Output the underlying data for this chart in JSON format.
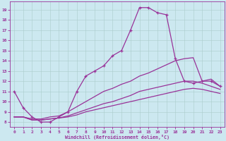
{
  "xlabel": "Windchill (Refroidissement éolien,°C)",
  "bg_color": "#cce8f0",
  "line_color": "#993399",
  "grid_color": "#aacccc",
  "xlim": [
    -0.5,
    23.5
  ],
  "ylim": [
    7.5,
    19.8
  ],
  "xticks": [
    0,
    1,
    2,
    3,
    4,
    5,
    6,
    7,
    8,
    9,
    10,
    11,
    12,
    13,
    14,
    15,
    16,
    17,
    18,
    19,
    20,
    21,
    22,
    23
  ],
  "yticks": [
    8,
    9,
    10,
    11,
    12,
    13,
    14,
    15,
    16,
    17,
    18,
    19
  ],
  "series": [
    {
      "x": [
        0,
        1,
        2,
        3,
        4,
        5,
        6,
        7,
        8,
        9,
        10,
        11,
        12,
        13,
        14,
        15,
        16,
        17,
        18,
        19,
        20,
        21,
        22,
        23
      ],
      "y": [
        11.0,
        9.4,
        8.5,
        8.0,
        8.0,
        8.5,
        9.0,
        11.0,
        12.5,
        13.0,
        13.5,
        14.5,
        15.0,
        17.0,
        19.2,
        19.2,
        18.7,
        18.5,
        14.2,
        12.0,
        11.8,
        12.0,
        12.0,
        11.5
      ],
      "marker": true
    },
    {
      "x": [
        0,
        1,
        2,
        3,
        4,
        5,
        6,
        7,
        8,
        9,
        10,
        11,
        12,
        13,
        14,
        15,
        16,
        17,
        18,
        19,
        20,
        21,
        22,
        23
      ],
      "y": [
        8.5,
        8.5,
        8.3,
        8.3,
        8.5,
        8.6,
        9.0,
        9.5,
        10.0,
        10.5,
        11.0,
        11.3,
        11.7,
        12.0,
        12.5,
        12.8,
        13.2,
        13.6,
        14.0,
        14.2,
        14.3,
        12.0,
        12.2,
        11.5
      ],
      "marker": false
    },
    {
      "x": [
        0,
        1,
        2,
        3,
        4,
        5,
        6,
        7,
        8,
        9,
        10,
        11,
        12,
        13,
        14,
        15,
        16,
        17,
        18,
        19,
        20,
        21,
        22,
        23
      ],
      "y": [
        8.5,
        8.5,
        8.2,
        8.2,
        8.3,
        8.4,
        8.6,
        8.9,
        9.2,
        9.5,
        9.8,
        10.0,
        10.3,
        10.6,
        11.0,
        11.2,
        11.4,
        11.6,
        11.8,
        12.0,
        12.0,
        11.8,
        11.5,
        11.2
      ],
      "marker": false
    },
    {
      "x": [
        0,
        1,
        2,
        3,
        4,
        5,
        6,
        7,
        8,
        9,
        10,
        11,
        12,
        13,
        14,
        15,
        16,
        17,
        18,
        19,
        20,
        21,
        22,
        23
      ],
      "y": [
        8.5,
        8.5,
        8.2,
        8.2,
        8.3,
        8.4,
        8.5,
        8.7,
        9.0,
        9.2,
        9.4,
        9.6,
        9.8,
        10.0,
        10.2,
        10.4,
        10.6,
        10.8,
        11.0,
        11.2,
        11.3,
        11.2,
        11.0,
        10.8
      ],
      "marker": false
    }
  ]
}
